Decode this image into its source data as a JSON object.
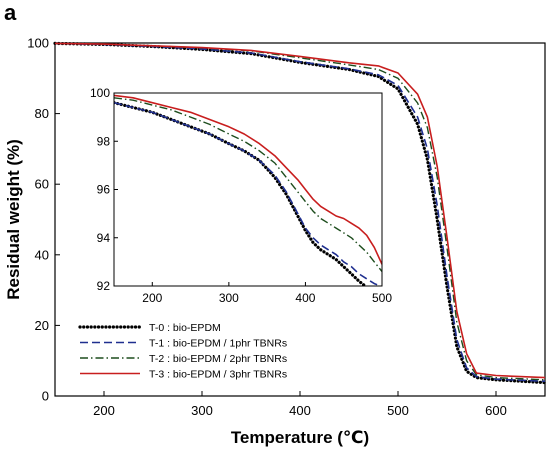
{
  "panel_label": "a",
  "chart_data": [
    {
      "type": "line",
      "id": "main",
      "xlabel": "Temperature (℃)",
      "ylabel": "Residual weight (%)",
      "xlim": [
        150,
        650
      ],
      "ylim": [
        0,
        100
      ],
      "xticks": [
        200,
        300,
        400,
        500,
        600
      ],
      "yticks": [
        0,
        20,
        40,
        60,
        80,
        100
      ],
      "legend_position": "bottom-left",
      "series": [
        {
          "name": "T-0 : bio-EPDM",
          "color": "#000000",
          "style": "dotted",
          "x": [
            150,
            200,
            250,
            300,
            350,
            400,
            450,
            480,
            500,
            520,
            530,
            540,
            550,
            560,
            570,
            580,
            600,
            650
          ],
          "y": [
            99.9,
            99.6,
            99.0,
            98.2,
            97.0,
            94.5,
            92.5,
            90.5,
            87.0,
            77.0,
            67.0,
            50.0,
            31.0,
            14.0,
            7.0,
            5.2,
            4.6,
            3.8
          ]
        },
        {
          "name": "T-1 : bio-EPDM / 1phr TBNRs",
          "color": "#1f2f8f",
          "style": "dashed",
          "x": [
            150,
            200,
            250,
            300,
            350,
            400,
            450,
            480,
            500,
            520,
            530,
            540,
            550,
            560,
            570,
            580,
            600,
            650
          ],
          "y": [
            99.9,
            99.6,
            99.0,
            98.3,
            97.2,
            94.7,
            92.7,
            91.0,
            88.0,
            79.0,
            70.0,
            54.0,
            34.0,
            16.0,
            8.0,
            5.5,
            4.8,
            4.2
          ]
        },
        {
          "name": "T-2 : bio-EPDM / 2phr TBNRs",
          "color": "#1d4d1d",
          "style": "dashdot",
          "x": [
            150,
            200,
            250,
            300,
            350,
            400,
            450,
            480,
            500,
            520,
            530,
            540,
            550,
            560,
            570,
            580,
            600,
            650
          ],
          "y": [
            99.9,
            99.7,
            99.2,
            98.6,
            97.8,
            95.8,
            93.8,
            92.5,
            90.0,
            83.0,
            76.0,
            62.0,
            42.0,
            21.0,
            10.0,
            6.0,
            5.2,
            4.6
          ]
        },
        {
          "name": "T-3 : bio-EPDM / 3phr TBNRs",
          "color": "#c81e1e",
          "style": "solid",
          "x": [
            150,
            200,
            250,
            300,
            350,
            400,
            450,
            480,
            500,
            520,
            530,
            540,
            550,
            560,
            570,
            580,
            600,
            650
          ],
          "y": [
            99.9,
            99.7,
            99.2,
            98.7,
            97.9,
            96.2,
            94.4,
            93.5,
            91.5,
            85.5,
            79.0,
            65.0,
            45.0,
            24.0,
            12.0,
            6.5,
            5.8,
            5.2
          ]
        }
      ]
    },
    {
      "type": "line",
      "id": "inset",
      "xlim": [
        150,
        500
      ],
      "ylim": [
        92,
        100
      ],
      "xticks": [
        200,
        300,
        400,
        500
      ],
      "yticks": [
        92,
        94,
        96,
        98,
        100
      ],
      "series": [
        {
          "name": "T-0 : bio-EPDM",
          "color": "#000000",
          "style": "dotted",
          "x": [
            150,
            175,
            200,
            225,
            250,
            275,
            300,
            320,
            340,
            360,
            375,
            390,
            400,
            410,
            420,
            430,
            440,
            450,
            460,
            470,
            478
          ],
          "y": [
            99.6,
            99.4,
            99.2,
            98.9,
            98.6,
            98.3,
            97.9,
            97.6,
            97.2,
            96.5,
            95.8,
            94.9,
            94.3,
            93.8,
            93.5,
            93.3,
            93.1,
            92.8,
            92.5,
            92.2,
            92.0
          ]
        },
        {
          "name": "T-1 : bio-EPDM / 1phr TBNRs",
          "color": "#1f2f8f",
          "style": "dashed",
          "x": [
            150,
            175,
            200,
            225,
            250,
            275,
            300,
            320,
            340,
            360,
            375,
            390,
            400,
            410,
            420,
            430,
            440,
            450,
            460,
            470,
            480,
            490,
            498
          ],
          "y": [
            99.6,
            99.4,
            99.2,
            98.9,
            98.6,
            98.3,
            97.9,
            97.6,
            97.2,
            96.6,
            95.9,
            95.0,
            94.4,
            94.0,
            93.7,
            93.5,
            93.3,
            93.0,
            92.8,
            92.5,
            92.3,
            92.1,
            92.0
          ]
        },
        {
          "name": "T-2 : bio-EPDM / 2phr TBNRs",
          "color": "#1d4d1d",
          "style": "dashdot",
          "x": [
            150,
            175,
            200,
            225,
            250,
            275,
            300,
            320,
            340,
            360,
            375,
            390,
            400,
            410,
            420,
            430,
            440,
            450,
            460,
            470,
            480,
            490,
            500
          ],
          "y": [
            99.8,
            99.7,
            99.5,
            99.3,
            99.0,
            98.7,
            98.3,
            98.0,
            97.6,
            97.1,
            96.5,
            95.9,
            95.5,
            95.1,
            94.8,
            94.6,
            94.4,
            94.2,
            94.0,
            93.7,
            93.4,
            93.0,
            92.6
          ]
        },
        {
          "name": "T-3 : bio-EPDM / 3phr TBNRs",
          "color": "#c81e1e",
          "style": "solid",
          "x": [
            150,
            175,
            200,
            225,
            250,
            275,
            300,
            320,
            340,
            360,
            375,
            390,
            400,
            410,
            420,
            430,
            440,
            450,
            460,
            470,
            480,
            490,
            500
          ],
          "y": [
            99.9,
            99.8,
            99.6,
            99.4,
            99.2,
            98.9,
            98.6,
            98.3,
            97.9,
            97.4,
            96.9,
            96.4,
            96.0,
            95.6,
            95.3,
            95.1,
            94.9,
            94.8,
            94.6,
            94.4,
            94.1,
            93.6,
            92.9
          ]
        }
      ]
    }
  ]
}
